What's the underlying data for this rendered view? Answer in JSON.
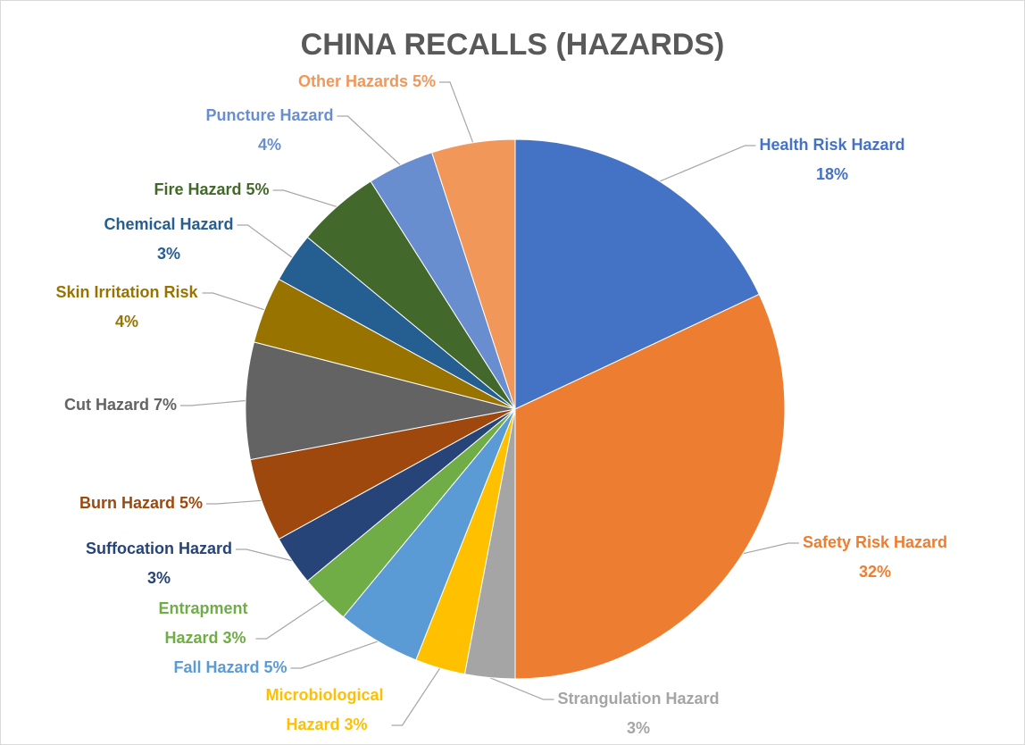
{
  "chart_data": {
    "type": "pie",
    "title": "CHINA RECALLS (HAZARDS)",
    "categories": [
      "Health Risk Hazard",
      "Safety Risk Hazard",
      "Strangulation Hazard",
      "Microbiological Hazard",
      "Fall Hazard",
      "Entrapment Hazard",
      "Suffocation Hazard",
      "Burn Hazard",
      "Cut Hazard",
      "Skin Irritation Risk",
      "Chemical Hazard",
      "Fire Hazard",
      "Puncture Hazard",
      "Other Hazards"
    ],
    "values": [
      18,
      32,
      3,
      3,
      5,
      3,
      3,
      5,
      7,
      4,
      3,
      5,
      4,
      5
    ],
    "value_labels": [
      "18%",
      "32%",
      "3%",
      "3%",
      "5%",
      "3%",
      "3%",
      "5%",
      "7%",
      "4%",
      "3%",
      "5%",
      "4%",
      "5%"
    ],
    "colors": [
      "#4472c4",
      "#ed7d31",
      "#a5a5a5",
      "#ffc000",
      "#5b9bd5",
      "#70ad47",
      "#264478",
      "#9e480e",
      "#636363",
      "#997300",
      "#255e91",
      "#43682b",
      "#698ed0",
      "#f1975a"
    ]
  }
}
